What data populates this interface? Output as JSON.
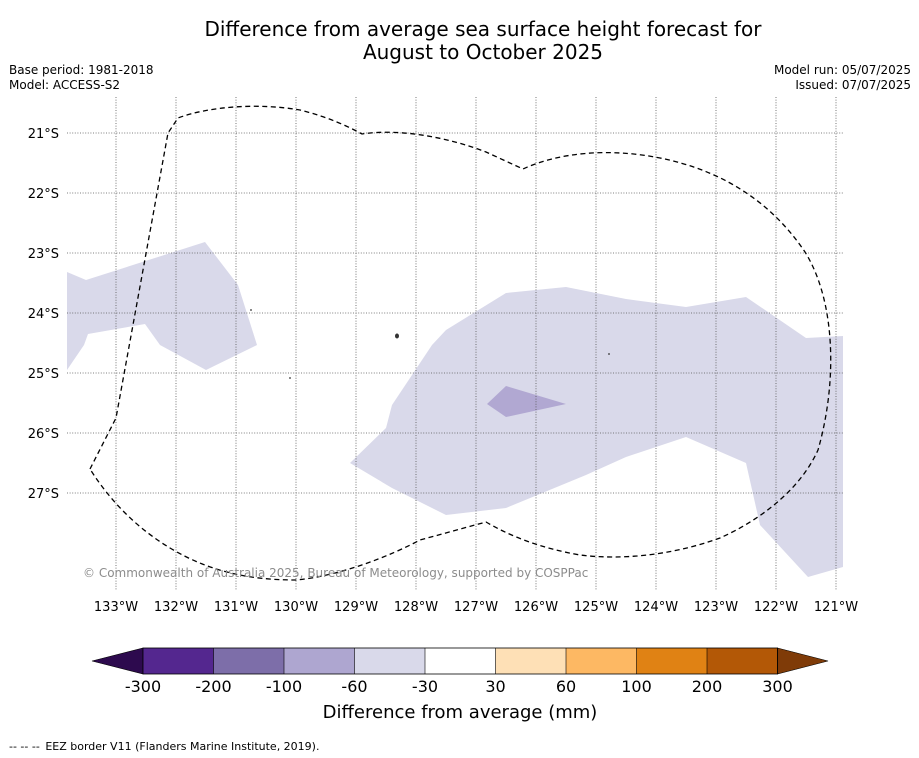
{
  "title_line1": "Difference from average sea surface height forecast for",
  "title_line2": "August to October 2025",
  "meta_left": {
    "base_period": "Base period: 1981-2018",
    "model": "Model: ACCESS-S2"
  },
  "meta_right": {
    "model_run": "Model run: 05/07/2025",
    "issued": "Issued: 07/07/2025"
  },
  "map": {
    "lon_labels": [
      "133°W",
      "132°W",
      "131°W",
      "130°W",
      "129°W",
      "128°W",
      "127°W",
      "126°W",
      "125°W",
      "124°W",
      "123°W",
      "122°W",
      "121°W"
    ],
    "lat_labels": [
      "21°S",
      "22°S",
      "23°S",
      "24°S",
      "25°S",
      "26°S",
      "27°S"
    ],
    "copyright": "© Commonwealth of Australia 2025, Bureau of Meteorology, supported by COSPPac",
    "light_anomaly_color": "#d9d9ea",
    "medium_anomaly_color": "#b1a8d2"
  },
  "colorbar": {
    "title": "Difference from average (mm)",
    "labels": [
      "-300",
      "-200",
      "-100",
      "-60",
      "-30",
      "30",
      "60",
      "100",
      "200",
      "300"
    ],
    "colors": [
      "#54278f",
      "#7d6ea9",
      "#aea6d0",
      "#d9d9ea",
      "#ffffff",
      "#fee0b6",
      "#fdb863",
      "#e08214",
      "#b35806"
    ],
    "under_color": "#2d0a4e",
    "over_color": "#7f3b08"
  },
  "footnote": {
    "dashes": "-- -- --",
    "text": "EEZ border V11 (Flanders Marine Institute, 2019)."
  }
}
